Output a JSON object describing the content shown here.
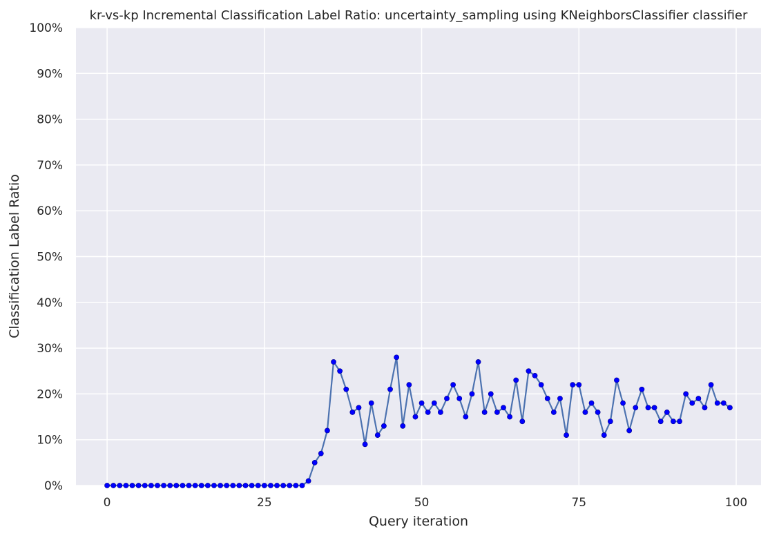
{
  "colors": {
    "plot_background": "#eaeaf2",
    "grid": "#ffffff",
    "line": "#4c72b0",
    "marker": "#0000ff",
    "text": "#262626"
  },
  "chart_data": {
    "type": "line",
    "title": "kr-vs-kp Incremental Classification Label Ratio: uncertainty_sampling using KNeighborsClassifier classifier",
    "xlabel": "Query iteration",
    "ylabel": "Classification Label Ratio",
    "xlim": [
      -4.95,
      103.95
    ],
    "ylim": [
      0,
      1
    ],
    "x_ticks": [
      0,
      25,
      50,
      75,
      100
    ],
    "y_ticks": [
      0,
      0.1,
      0.2,
      0.3,
      0.4,
      0.5,
      0.6,
      0.7,
      0.8,
      0.9,
      1.0
    ],
    "x_tick_labels": [
      "0",
      "25",
      "50",
      "75",
      "100"
    ],
    "y_tick_labels": [
      "0%",
      "10%",
      "20%",
      "30%",
      "40%",
      "50%",
      "60%",
      "70%",
      "80%",
      "90%",
      "100%"
    ],
    "grid": true,
    "series": [
      {
        "x": [
          0,
          1,
          2,
          3,
          4,
          5,
          6,
          7,
          8,
          9,
          10,
          11,
          12,
          13,
          14,
          15,
          16,
          17,
          18,
          19,
          20,
          21,
          22,
          23,
          24,
          25,
          26,
          27,
          28,
          29,
          30,
          31,
          32,
          33,
          34,
          35,
          36,
          37,
          38,
          39,
          40,
          41,
          42,
          43,
          44,
          45,
          46,
          47,
          48,
          49,
          50,
          51,
          52,
          53,
          54,
          55,
          56,
          57,
          58,
          59,
          60,
          61,
          62,
          63,
          64,
          65,
          66,
          67,
          68,
          69,
          70,
          71,
          72,
          73,
          74,
          75,
          76,
          77,
          78,
          79,
          80,
          81,
          82,
          83,
          84,
          85,
          86,
          87,
          88,
          89,
          90,
          91,
          92,
          93,
          94,
          95,
          96,
          97,
          98,
          99
        ],
        "values": [
          0,
          0,
          0,
          0,
          0,
          0,
          0,
          0,
          0,
          0,
          0,
          0,
          0,
          0,
          0,
          0,
          0,
          0,
          0,
          0,
          0,
          0,
          0,
          0,
          0,
          0,
          0,
          0,
          0,
          0,
          0,
          0,
          0.01,
          0.05,
          0.07,
          0.12,
          0.27,
          0.25,
          0.21,
          0.16,
          0.17,
          0.09,
          0.18,
          0.11,
          0.13,
          0.21,
          0.28,
          0.13,
          0.22,
          0.15,
          0.18,
          0.16,
          0.18,
          0.16,
          0.19,
          0.22,
          0.19,
          0.15,
          0.2,
          0.27,
          0.16,
          0.2,
          0.16,
          0.17,
          0.15,
          0.23,
          0.14,
          0.25,
          0.24,
          0.22,
          0.19,
          0.16,
          0.19,
          0.11,
          0.22,
          0.22,
          0.16,
          0.18,
          0.16,
          0.11,
          0.14,
          0.23,
          0.18,
          0.12,
          0.17,
          0.21,
          0.17,
          0.17,
          0.14,
          0.16,
          0.14,
          0.14,
          0.2,
          0.18,
          0.19,
          0.17,
          0.22,
          0.18,
          0.18,
          0.17
        ]
      }
    ]
  }
}
